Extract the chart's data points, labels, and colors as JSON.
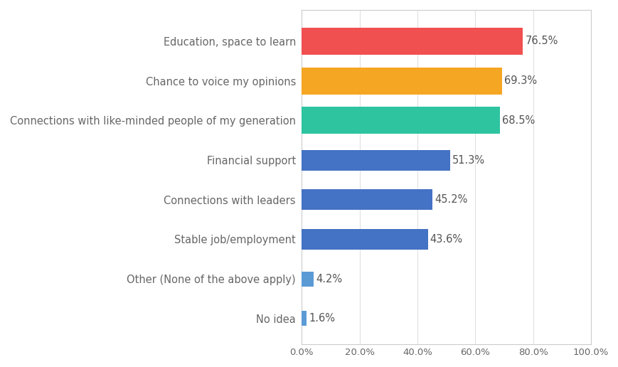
{
  "categories": [
    "No idea",
    "Other (None of the above apply)",
    "Stable job/employment",
    "Connections with leaders",
    "Financial support",
    "Connections with like-minded people of my generation",
    "Chance to voice my opinions",
    "Education, space to learn"
  ],
  "values": [
    1.6,
    4.2,
    43.6,
    45.2,
    51.3,
    68.5,
    69.3,
    76.5
  ],
  "bar_colors": [
    "#5b9bd5",
    "#5b9bd5",
    "#4472c4",
    "#4472c4",
    "#4472c4",
    "#2ec4a0",
    "#f5a623",
    "#f05050"
  ],
  "xlim": [
    0,
    100
  ],
  "xticks": [
    0,
    20,
    40,
    60,
    80,
    100
  ],
  "xtick_labels": [
    "0.0%",
    "20.0%",
    "40.0%",
    "60.0%",
    "80.0%",
    "100.0%"
  ],
  "label_color": "#666666",
  "background_color": "#ffffff",
  "value_label_color": "#555555",
  "label_fontsize": 10.5,
  "value_fontsize": 10.5,
  "tick_fontsize": 9.5,
  "border_color": "#cccccc",
  "grid_color": "#e0e0e0"
}
